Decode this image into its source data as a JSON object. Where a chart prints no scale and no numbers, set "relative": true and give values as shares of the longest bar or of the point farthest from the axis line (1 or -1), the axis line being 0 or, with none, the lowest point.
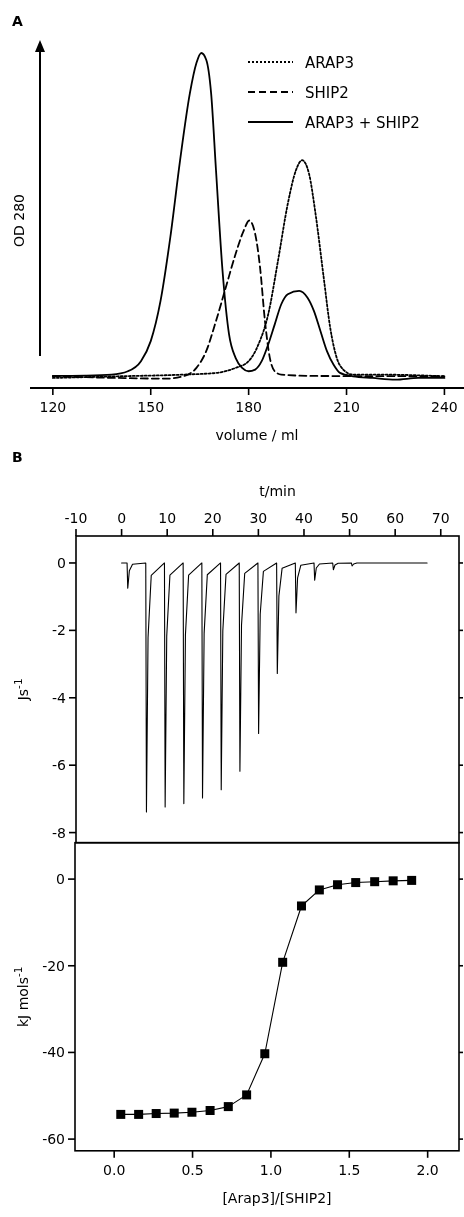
{
  "chart_data": [
    {
      "type": "line",
      "title": "A",
      "xlabel": "volume / ml",
      "ylabel": "OD 280",
      "relative": true,
      "legend": "top right",
      "xlim": [
        113,
        246
      ],
      "xticks": [
        120,
        150,
        180,
        210,
        240
      ],
      "series": [
        {
          "name": "ARAP3",
          "color": "#000000",
          "line_style": "dotted",
          "x": [
            120,
            140,
            160,
            170,
            176,
            180,
            183,
            186,
            189,
            192,
            194.5,
            196.4,
            198.5,
            200.5,
            203,
            205,
            207,
            209,
            212,
            220,
            240
          ],
          "values": [
            0.03,
            0.035,
            0.04,
            0.045,
            0.06,
            0.08,
            0.13,
            0.22,
            0.38,
            0.55,
            0.65,
            0.68,
            0.64,
            0.52,
            0.33,
            0.18,
            0.09,
            0.055,
            0.04,
            0.04,
            0.035
          ]
        },
        {
          "name": "SHIP2",
          "color": "#000000",
          "line_style": "dashed",
          "x": [
            120,
            140,
            155,
            160,
            164,
            167,
            170,
            173,
            176,
            178.5,
            180.2,
            182,
            183.5,
            185,
            186.5,
            188,
            190,
            200,
            240
          ],
          "values": [
            0.035,
            0.03,
            0.028,
            0.035,
            0.06,
            0.11,
            0.2,
            0.3,
            0.4,
            0.47,
            0.5,
            0.46,
            0.36,
            0.2,
            0.09,
            0.05,
            0.04,
            0.036,
            0.035
          ]
        },
        {
          "name": "ARAP3 + SHIP2",
          "color": "#000000",
          "line_style": "solid",
          "x": [
            120,
            130,
            138,
            143,
            147,
            150,
            153,
            156,
            159,
            162,
            164,
            165.5,
            167,
            168.5,
            170,
            172,
            174,
            176,
            178,
            180,
            182,
            184,
            186,
            188,
            190,
            192,
            195.5,
            198,
            200,
            202,
            204,
            206,
            208,
            212,
            218,
            225,
            232,
            240
          ],
          "values": [
            0.036,
            0.037,
            0.04,
            0.05,
            0.08,
            0.14,
            0.26,
            0.45,
            0.68,
            0.88,
            0.97,
            1,
            0.98,
            0.88,
            0.65,
            0.35,
            0.16,
            0.09,
            0.06,
            0.05,
            0.055,
            0.08,
            0.13,
            0.19,
            0.25,
            0.28,
            0.29,
            0.27,
            0.23,
            0.17,
            0.11,
            0.07,
            0.045,
            0.035,
            0.03,
            0.025,
            0.03,
            0.03
          ]
        }
      ]
    },
    {
      "type": "line",
      "title": "B",
      "xlabel": "t/min",
      "ylabel": "Js$^{-1}$",
      "xlim": [
        -10,
        74
      ],
      "xticks": [
        -10,
        0,
        10,
        20,
        30,
        40,
        50,
        60,
        70
      ],
      "ylim": [
        -8.3,
        0.8
      ],
      "yticks": [
        0,
        -2,
        -4,
        -6,
        -8
      ],
      "series": [
        {
          "color": "#000000",
          "x": [
            0,
            1.2,
            1.35,
            1.7,
            2.4,
            5.3,
            5.45,
            5.8,
            6.5,
            9.4,
            9.55,
            9.9,
            10.6,
            13.5,
            13.65,
            14.0,
            14.7,
            17.6,
            17.75,
            18.1,
            18.8,
            21.7,
            21.85,
            22.2,
            22.9,
            25.8,
            25.95,
            26.3,
            27.0,
            29.9,
            30.05,
            30.4,
            31.1,
            34.0,
            34.15,
            34.5,
            35.2,
            38.1,
            38.25,
            38.6,
            39.3,
            42.2,
            42.35,
            42.7,
            43.4,
            46.3,
            46.45,
            46.8,
            47.5,
            50.4,
            50.55,
            50.9,
            51.6,
            67
          ],
          "values": [
            0,
            0,
            -0.75,
            -0.23,
            -0.04,
            0,
            -7.39,
            -2.22,
            -0.37,
            0,
            -7.24,
            -2.17,
            -0.36,
            0,
            -7.14,
            -2.14,
            -0.36,
            0,
            -6.97,
            -2.09,
            -0.35,
            0,
            -6.73,
            -2.02,
            -0.34,
            0,
            -6.18,
            -1.85,
            -0.31,
            0,
            -5.06,
            -1.52,
            -0.25,
            0,
            -3.28,
            -0.98,
            -0.16,
            0,
            -1.48,
            -0.44,
            -0.07,
            0,
            -0.51,
            -0.15,
            -0.03,
            0,
            -0.2,
            -0.06,
            -0.01,
            0,
            -0.09,
            -0.03,
            0,
            0
          ]
        }
      ]
    },
    {
      "type": "line",
      "xlabel": "[Arap3]/[SHIP2]",
      "ylabel": "kJ mols$^{-1}$",
      "xlim": [
        -0.25,
        2.2
      ],
      "xticks": [
        {
          "value": 0,
          "label": "0.0"
        },
        0.5,
        {
          "value": 1,
          "label": "1.0"
        },
        1.5,
        {
          "value": 2,
          "label": "2.0"
        }
      ],
      "ylim": [
        -62.7,
        8.4
      ],
      "yticks": [
        0,
        -20,
        -40,
        -60
      ],
      "marker": "square",
      "series": [
        {
          "color": "#000000",
          "x": [
            0.042,
            0.156,
            0.268,
            0.383,
            0.496,
            0.612,
            0.728,
            0.845,
            0.961,
            1.075,
            1.195,
            1.309,
            1.425,
            1.541,
            1.662,
            1.78,
            1.898
          ],
          "values": [
            -54.3,
            -54.3,
            -54.1,
            -54.0,
            -53.8,
            -53.4,
            -52.5,
            -49.8,
            -40.3,
            -19.2,
            -6.2,
            -2.5,
            -1.3,
            -0.8,
            -0.6,
            -0.4,
            -0.3
          ]
        }
      ]
    }
  ]
}
